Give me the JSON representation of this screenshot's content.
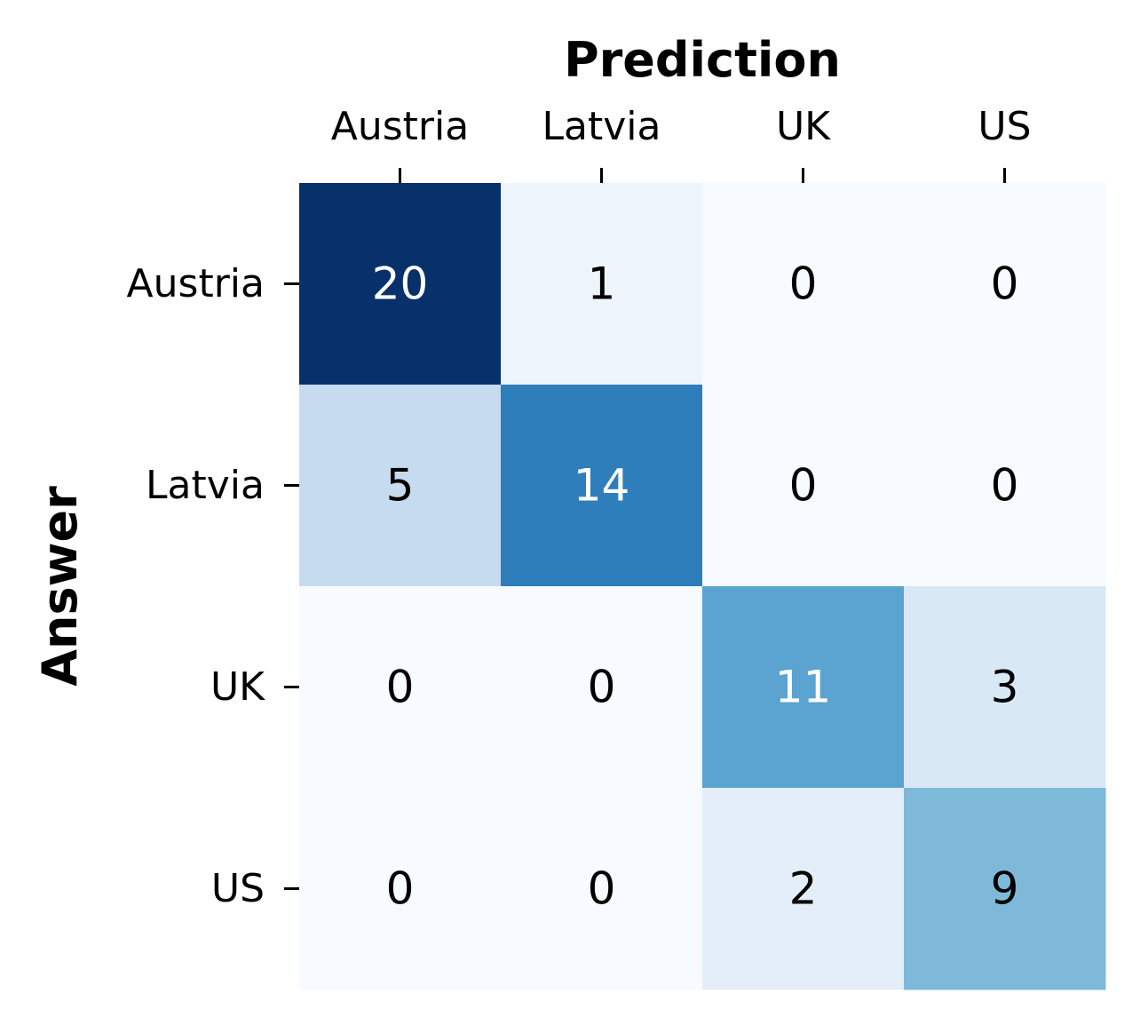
{
  "chart_data": {
    "type": "heatmap",
    "xlabel": "Prediction",
    "ylabel": "Answer",
    "x_categories": [
      "Austria",
      "Latvia",
      "UK",
      "US"
    ],
    "y_categories": [
      "Austria",
      "Latvia",
      "UK",
      "US"
    ],
    "values": [
      [
        20,
        1,
        0,
        0
      ],
      [
        5,
        14,
        0,
        0
      ],
      [
        0,
        0,
        11,
        3
      ],
      [
        0,
        0,
        2,
        9
      ]
    ],
    "vmin": 0,
    "vmax": 20,
    "colormap": "Blues",
    "colorbar": false,
    "x_axis_position": "top"
  }
}
